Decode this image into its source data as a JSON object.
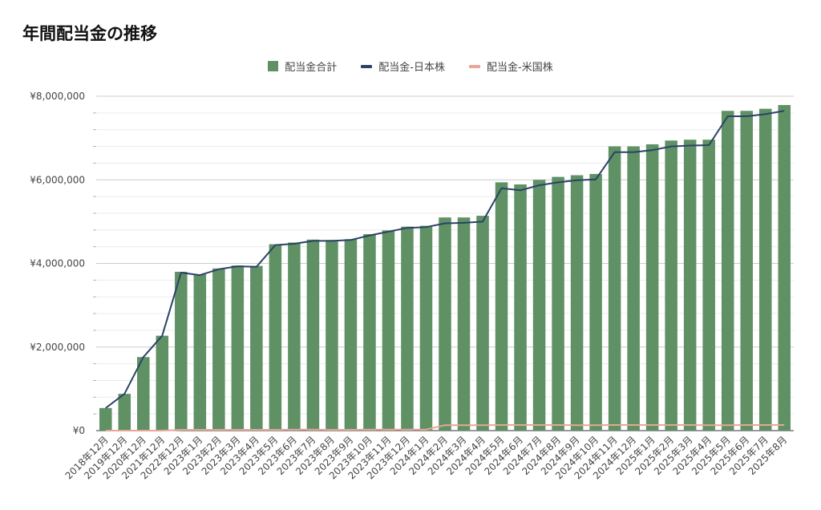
{
  "chart_data": {
    "type": "bar",
    "title": "年間配当金の推移",
    "xlabel": "",
    "ylabel": "",
    "ylim": [
      0,
      8000000
    ],
    "y_ticks": [
      "¥0",
      "¥2,000,000",
      "¥4,000,000",
      "¥6,000,000",
      "¥8,000,000"
    ],
    "y_tick_values": [
      0,
      2000000,
      4000000,
      6000000,
      8000000
    ],
    "grid": true,
    "legend_placement": "top-center",
    "categories": [
      "2018年12月",
      "2019年12月",
      "2020年12月",
      "2021年12月",
      "2022年12月",
      "2023年1月",
      "2023年2月",
      "2023年3月",
      "2023年4月",
      "2023年5月",
      "2023年6月",
      "2023年7月",
      "2023年8月",
      "2023年9月",
      "2023年10月",
      "2023年11月",
      "2023年12月",
      "2024年1月",
      "2024年2月",
      "2024年3月",
      "2024年4月",
      "2024年5月",
      "2024年6月",
      "2024年7月",
      "2024年8月",
      "2024年9月",
      "2024年10月",
      "2024年11月",
      "2024年12月",
      "2025年1月",
      "2025年2月",
      "2025年3月",
      "2025年4月",
      "2025年5月",
      "2025年6月",
      "2025年7月",
      "2025年8月"
    ],
    "series": [
      {
        "name": "配当金合計",
        "type": "bar",
        "color": "#5f9165",
        "values": [
          540000,
          880000,
          1760000,
          2270000,
          3800000,
          3740000,
          3880000,
          3950000,
          3940000,
          4460000,
          4500000,
          4570000,
          4560000,
          4580000,
          4700000,
          4790000,
          4880000,
          4900000,
          5100000,
          5100000,
          5140000,
          5940000,
          5890000,
          6000000,
          6070000,
          6110000,
          6140000,
          6800000,
          6800000,
          6850000,
          6940000,
          6960000,
          6960000,
          7650000,
          7650000,
          7700000,
          7790000
        ]
      },
      {
        "name": "配当金-日本株",
        "type": "line",
        "color": "#2b4266",
        "values": [
          540000,
          880000,
          1760000,
          2270000,
          3780000,
          3720000,
          3860000,
          3930000,
          3920000,
          4440000,
          4470000,
          4540000,
          4540000,
          4560000,
          4670000,
          4760000,
          4850000,
          4870000,
          4960000,
          4970000,
          5000000,
          5800000,
          5750000,
          5870000,
          5940000,
          5990000,
          6010000,
          6660000,
          6660000,
          6710000,
          6800000,
          6820000,
          6830000,
          7520000,
          7520000,
          7570000,
          7650000
        ]
      },
      {
        "name": "配当金-米国株",
        "type": "line",
        "color": "#e8a598",
        "values": [
          0,
          0,
          0,
          0,
          20000,
          20000,
          20000,
          20000,
          20000,
          20000,
          25000,
          25000,
          20000,
          20000,
          25000,
          25000,
          25000,
          25000,
          130000,
          130000,
          130000,
          135000,
          135000,
          135000,
          135000,
          130000,
          130000,
          135000,
          135000,
          135000,
          135000,
          135000,
          130000,
          130000,
          135000,
          135000,
          135000
        ]
      }
    ]
  }
}
